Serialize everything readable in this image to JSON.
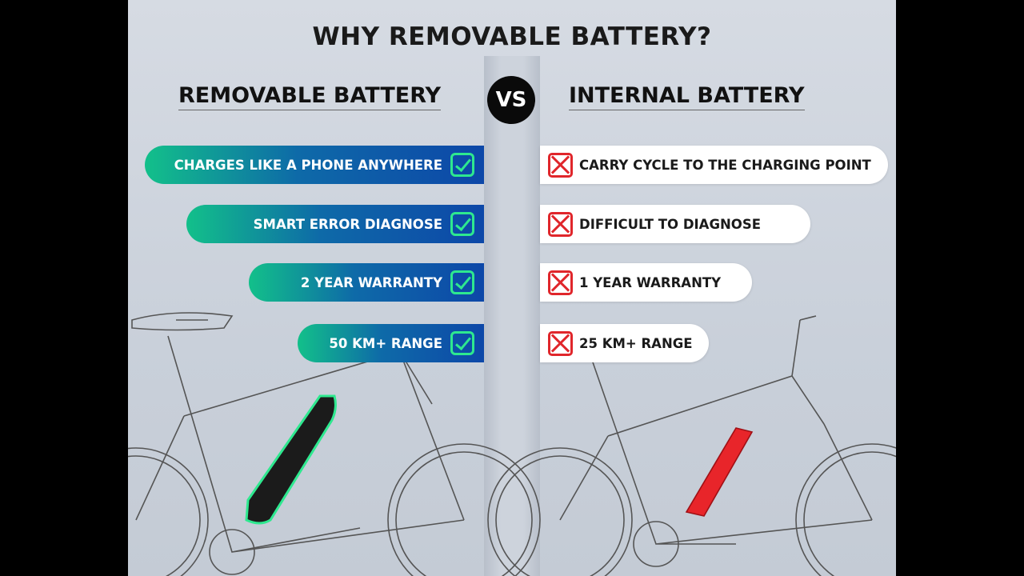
{
  "title": "WHY REMOVABLE BATTERY?",
  "left": {
    "heading": "REMOVABLE BATTERY",
    "items": [
      "CHARGES LIKE A PHONE ANYWHERE",
      "SMART ERROR DIAGNOSE",
      "2 YEAR WARRANTY",
      "50 KM+ RANGE"
    ],
    "icon": "check-icon",
    "color": "#2ee88f"
  },
  "vs": "VS",
  "right": {
    "heading": "INTERNAL BATTERY",
    "items": [
      "CARRY CYCLE TO THE CHARGING POINT",
      "DIFFICULT TO DIAGNOSE",
      "1 YEAR WARRANTY",
      "25 KM+ RANGE"
    ],
    "icon": "cross-icon",
    "color": "#e0262b"
  }
}
